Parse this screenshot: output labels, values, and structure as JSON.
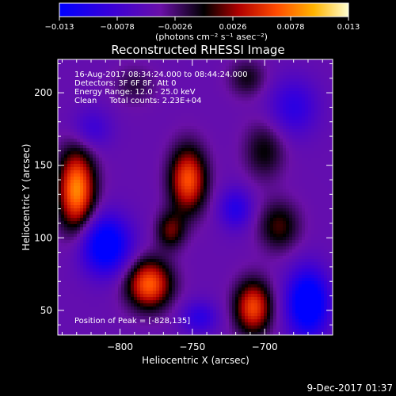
{
  "chart_data": {
    "type": "heatmap",
    "title": "Reconstructed RHESSI Image",
    "xlabel": "Heliocentric X (arcsec)",
    "ylabel": "Heliocentric Y (arcsec)",
    "x_ticks": [
      -800,
      -750,
      -700
    ],
    "y_ticks": [
      50,
      100,
      150,
      200
    ],
    "xlim": [
      -843,
      -653
    ],
    "ylim": [
      33,
      223
    ],
    "colorbar": {
      "ticks": [
        "-0.013",
        "-0.0078",
        "-0.0026",
        "0.0026",
        "0.0078",
        "0.013"
      ],
      "range": [
        -0.013,
        0.013
      ],
      "unit_label": "(photons cm⁻² s⁻¹ asec⁻²)"
    },
    "info_lines": [
      "16-Aug-2017 08:34:24.000 to 08:44:24.000",
      "Detectors: 3F 6F 8F, Att 0",
      "Energy Range: 12.0 - 25.0 keV",
      "Clean     Total counts: 2.23E+04"
    ],
    "peak_label": "Position of Peak = [-828,135]",
    "sources": [
      {
        "x": -830,
        "y": 133,
        "sx": 9,
        "sy": 20,
        "amp": 0.013
      },
      {
        "x": -780,
        "y": 68,
        "sx": 11,
        "sy": 12,
        "amp": 0.0115
      },
      {
        "x": -753,
        "y": 140,
        "sx": 9,
        "sy": 16,
        "amp": 0.011
      },
      {
        "x": -708,
        "y": 52,
        "sx": 9,
        "sy": 13,
        "amp": 0.0105
      },
      {
        "x": -690,
        "y": 108,
        "sx": 10,
        "sy": 12,
        "amp": 0.0055
      },
      {
        "x": -700,
        "y": 160,
        "sx": 10,
        "sy": 14,
        "amp": 0.0045
      },
      {
        "x": -765,
        "y": 105,
        "sx": 7,
        "sy": 9,
        "amp": 0.006
      },
      {
        "x": -712,
        "y": 210,
        "sx": 9,
        "sy": 9,
        "amp": 0.004
      },
      {
        "x": -790,
        "y": 205,
        "sx": 10,
        "sy": 9,
        "amp": 0.003
      }
    ],
    "negatives": [
      {
        "x": -810,
        "y": 95,
        "sx": 12,
        "sy": 14,
        "amp": -0.011
      },
      {
        "x": -670,
        "y": 55,
        "sx": 10,
        "sy": 16,
        "amp": -0.012
      },
      {
        "x": -720,
        "y": 120,
        "sx": 8,
        "sy": 10,
        "amp": -0.0055
      },
      {
        "x": -680,
        "y": 190,
        "sx": 12,
        "sy": 14,
        "amp": -0.005
      },
      {
        "x": -820,
        "y": 175,
        "sx": 10,
        "sy": 10,
        "amp": -0.004
      },
      {
        "x": -745,
        "y": 45,
        "sx": 9,
        "sy": 8,
        "amp": -0.005
      }
    ]
  },
  "footer_date": "9-Dec-2017 01:37"
}
